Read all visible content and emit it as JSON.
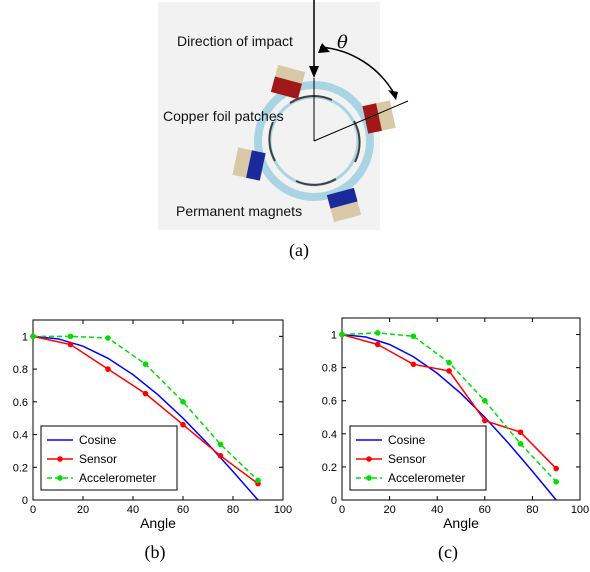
{
  "figure": {
    "diagram": {
      "labels": {
        "direction": "Direction of impact",
        "copper": "Copper foil patches",
        "magnets": "Permanent magnets",
        "angle_symbol": "θ"
      },
      "colors": {
        "ring": "#a9d4e3",
        "magnet_red": "#a01818",
        "magnet_blue": "#1a2a9a",
        "magnet_base": "#d8c8a8",
        "arrow": "#000000"
      }
    },
    "captions": [
      "(a)",
      "(b)",
      "(c)"
    ]
  },
  "chart_data": [
    {
      "type": "line",
      "xlabel": "Angle",
      "ylabel": "",
      "xlim": [
        0,
        100
      ],
      "ylim": [
        0,
        1.1
      ],
      "x_ticks": [
        "0",
        "20",
        "40",
        "60",
        "80",
        "100"
      ],
      "y_ticks": [
        "0",
        "0.2",
        "0.4",
        "0.6",
        "0.8",
        "1"
      ],
      "legend_position": "bottom-left",
      "grid": false,
      "series": [
        {
          "name": "Cosine",
          "color": "#0000ff",
          "style": "solid",
          "marker": "none",
          "x": [
            0,
            10,
            20,
            30,
            40,
            50,
            60,
            70,
            80,
            90
          ],
          "y": [
            1,
            0.985,
            0.94,
            0.866,
            0.766,
            0.643,
            0.5,
            0.342,
            0.174,
            0
          ]
        },
        {
          "name": "Sensor",
          "color": "#ff0000",
          "style": "solid",
          "marker": "dot",
          "x": [
            0,
            15,
            30,
            45,
            60,
            75,
            90
          ],
          "y": [
            1,
            0.95,
            0.8,
            0.65,
            0.46,
            0.27,
            0.1
          ]
        },
        {
          "name": "Accelerometer",
          "color": "#00dd00",
          "style": "dashed",
          "marker": "dot",
          "x": [
            0,
            15,
            30,
            45,
            60,
            75,
            90
          ],
          "y": [
            1,
            1.0,
            0.99,
            0.83,
            0.6,
            0.34,
            0.12
          ]
        }
      ]
    },
    {
      "type": "line",
      "xlabel": "Angle",
      "ylabel": "",
      "xlim": [
        0,
        100
      ],
      "ylim": [
        0,
        1.1
      ],
      "x_ticks": [
        "0",
        "20",
        "40",
        "60",
        "80",
        "100"
      ],
      "y_ticks": [
        "0",
        "0.2",
        "0.4",
        "0.6",
        "0.8",
        "1"
      ],
      "legend_position": "bottom-left",
      "grid": false,
      "series": [
        {
          "name": "Cosine",
          "color": "#0000ff",
          "style": "solid",
          "marker": "none",
          "x": [
            0,
            10,
            20,
            30,
            40,
            50,
            60,
            70,
            80,
            90
          ],
          "y": [
            1,
            0.985,
            0.94,
            0.866,
            0.766,
            0.643,
            0.5,
            0.342,
            0.174,
            0
          ]
        },
        {
          "name": "Sensor",
          "color": "#ff0000",
          "style": "solid",
          "marker": "dot",
          "x": [
            0,
            15,
            30,
            45,
            60,
            75,
            90
          ],
          "y": [
            1,
            0.94,
            0.82,
            0.78,
            0.48,
            0.41,
            0.19
          ]
        },
        {
          "name": "Accelerometer",
          "color": "#00dd00",
          "style": "dashed",
          "marker": "dot",
          "x": [
            0,
            15,
            30,
            45,
            60,
            75,
            90
          ],
          "y": [
            1,
            1.01,
            0.99,
            0.83,
            0.6,
            0.34,
            0.11
          ]
        }
      ]
    }
  ]
}
